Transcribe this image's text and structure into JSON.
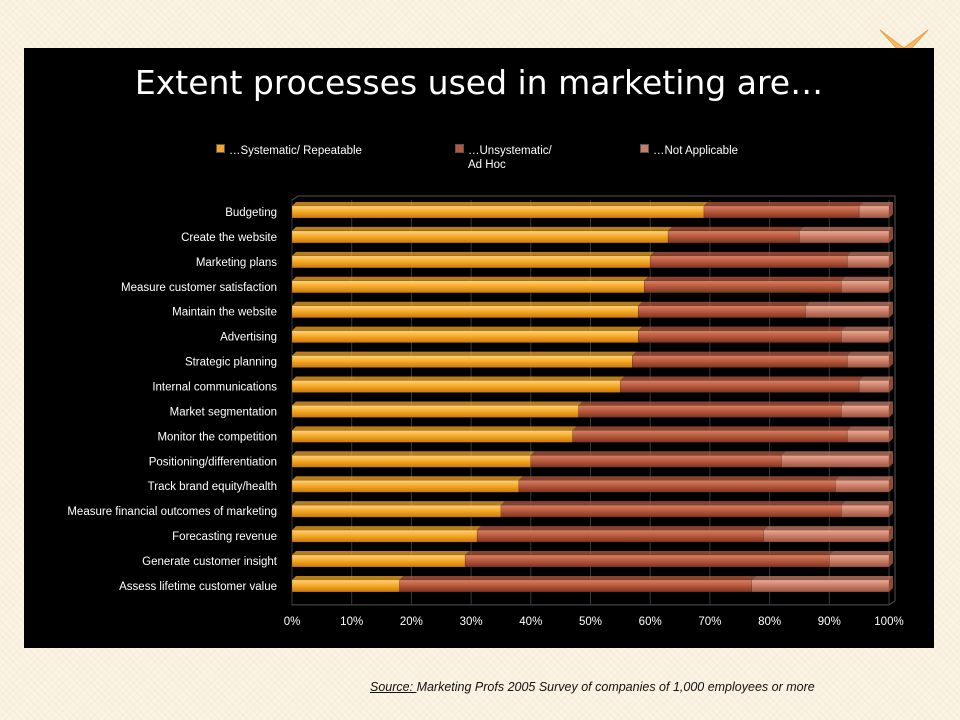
{
  "slide": {
    "title": "Extent processes used in marketing are…",
    "source_label": "Source:  ",
    "source_text": "Marketing Profs 2005 Survey of companies of 1,000 employees or more"
  },
  "colors": {
    "background": "#fbf3e4",
    "slide_bg": "#000000",
    "systematic": "#f5a623",
    "unsystematic": "#b5583c",
    "not_applicable": "#c97c66",
    "x_mark": "#f7b967"
  },
  "icons": {
    "corner_mark": "x-mark-icon"
  },
  "chart_data": {
    "type": "bar",
    "orientation": "horizontal",
    "stacked": "percent",
    "title": "Extent processes used in marketing are…",
    "xlim": [
      0,
      100
    ],
    "x_tick_labels": [
      "0%",
      "10%",
      "20%",
      "30%",
      "40%",
      "50%",
      "60%",
      "70%",
      "80%",
      "90%",
      "100%"
    ],
    "legend_position": "top",
    "categories": [
      "Budgeting",
      "Create the website",
      "Marketing plans",
      "Measure customer satisfaction",
      "Maintain the website",
      "Advertising",
      "Strategic planning",
      "Internal communications",
      "Market segmentation",
      "Monitor the competition",
      "Positioning/differentiation",
      "Track brand equity/health",
      "Measure financial outcomes of marketing",
      "Forecasting revenue",
      "Generate customer insight",
      "Assess lifetime customer value"
    ],
    "series": [
      {
        "name": "…Systematic/ Repeatable",
        "color": "#f5a623",
        "values": [
          69,
          63,
          60,
          59,
          58,
          58,
          57,
          55,
          48,
          47,
          40,
          38,
          35,
          31,
          29,
          18
        ]
      },
      {
        "name": "…Unsystematic/\nAd Hoc",
        "color": "#b5583c",
        "values": [
          26,
          22,
          33,
          33,
          28,
          34,
          36,
          40,
          44,
          46,
          42,
          53,
          57,
          48,
          61,
          59
        ]
      },
      {
        "name": "…Not Applicable",
        "color": "#c97c66",
        "values": [
          5,
          15,
          7,
          8,
          14,
          8,
          7,
          5,
          8,
          7,
          18,
          9,
          8,
          21,
          10,
          23
        ]
      }
    ]
  }
}
